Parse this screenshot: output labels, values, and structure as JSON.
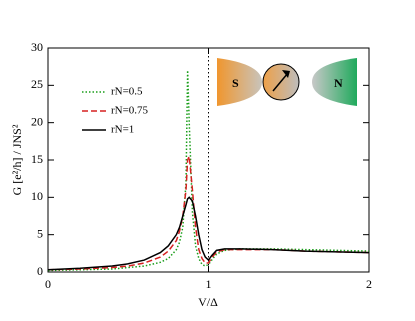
{
  "chart_data": {
    "type": "line",
    "x_label": "V/Δ",
    "y_label": "G [e²/h] / JNS²",
    "x": [
      0,
      0.2,
      0.4,
      0.5,
      0.6,
      0.7,
      0.75,
      0.8,
      0.82,
      0.84,
      0.86,
      0.87,
      0.88,
      0.9,
      0.92,
      0.94,
      0.96,
      0.98,
      1.0,
      1.02,
      1.05,
      1.1,
      1.2,
      1.4,
      1.6,
      1.8,
      2.0
    ],
    "series": [
      {
        "name": "rN=0.5",
        "color": "#1a9e1a",
        "dash": "dotted",
        "values": [
          0.2,
          0.3,
          0.4,
          0.6,
          0.8,
          1.3,
          1.8,
          3,
          4,
          6,
          12,
          27,
          20,
          8,
          3.5,
          1.8,
          1.0,
          0.8,
          1.0,
          1.6,
          2.4,
          2.9,
          3.1,
          3.1,
          3.0,
          2.9,
          2.8
        ]
      },
      {
        "name": "rN=0.75",
        "color": "#d62020",
        "dash": "dashed",
        "values": [
          0.3,
          0.4,
          0.6,
          0.8,
          1.2,
          2.0,
          2.8,
          4.2,
          5.5,
          7.5,
          11,
          15,
          15.5,
          11,
          6,
          3,
          1.8,
          1.2,
          1.2,
          1.9,
          2.7,
          3.0,
          3.0,
          3.0,
          2.8,
          2.7,
          2.6
        ]
      },
      {
        "name": "rN=1",
        "color": "#000000",
        "dash": "solid",
        "values": [
          0.3,
          0.5,
          0.8,
          1.1,
          1.6,
          2.6,
          3.5,
          5,
          6,
          7.5,
          9,
          9.8,
          10,
          9.5,
          7.5,
          5,
          3,
          2,
          1.6,
          2.2,
          2.9,
          3.1,
          3.1,
          3.0,
          2.8,
          2.7,
          2.6
        ]
      }
    ],
    "xlim": [
      0,
      2
    ],
    "xticks": [
      0,
      1,
      2
    ],
    "ylim": [
      0,
      30
    ],
    "yticks": [
      0,
      5,
      10,
      15,
      20,
      25,
      30
    ],
    "vline": 1,
    "inset_labels": [
      "S",
      "N"
    ]
  }
}
